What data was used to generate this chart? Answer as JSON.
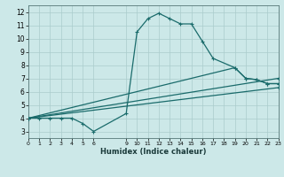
{
  "xlabel": "Humidex (Indice chaleur)",
  "xlim": [
    0,
    23
  ],
  "ylim": [
    2.5,
    12.5
  ],
  "xtick_positions": [
    0,
    1,
    2,
    3,
    4,
    5,
    6,
    9,
    10,
    11,
    12,
    13,
    14,
    15,
    16,
    17,
    18,
    19,
    20,
    21,
    22,
    23
  ],
  "xtick_labels": [
    "0",
    "1",
    "2",
    "3",
    "4",
    "5",
    "6",
    "9",
    "10",
    "11",
    "12",
    "13",
    "14",
    "15",
    "16",
    "17",
    "18",
    "19",
    "20",
    "21",
    "22",
    "23"
  ],
  "ytick_positions": [
    3,
    4,
    5,
    6,
    7,
    8,
    9,
    10,
    11,
    12
  ],
  "ytick_labels": [
    "3",
    "4",
    "5",
    "6",
    "7",
    "8",
    "9",
    "10",
    "11",
    "12"
  ],
  "background_color": "#cce8e8",
  "grid_color": "#aacccc",
  "line_color": "#1a6b6b",
  "line1_x": [
    0,
    1,
    2,
    3,
    4,
    5,
    6,
    9,
    10,
    11,
    12,
    13,
    14,
    15,
    16,
    17,
    19,
    20,
    21,
    22,
    23
  ],
  "line1_y": [
    4.0,
    4.0,
    4.0,
    4.0,
    4.0,
    3.6,
    3.0,
    4.35,
    10.5,
    11.5,
    11.9,
    11.5,
    11.1,
    11.1,
    9.8,
    8.5,
    7.8,
    7.0,
    6.9,
    6.6,
    6.6
  ],
  "line2_x": [
    0,
    19,
    20,
    21,
    22,
    23
  ],
  "line2_y": [
    4.0,
    7.8,
    7.0,
    6.9,
    6.6,
    6.6
  ],
  "line3_x": [
    0,
    23
  ],
  "line3_y": [
    4.0,
    7.0
  ],
  "line4_x": [
    0,
    23
  ],
  "line4_y": [
    4.0,
    6.3
  ]
}
